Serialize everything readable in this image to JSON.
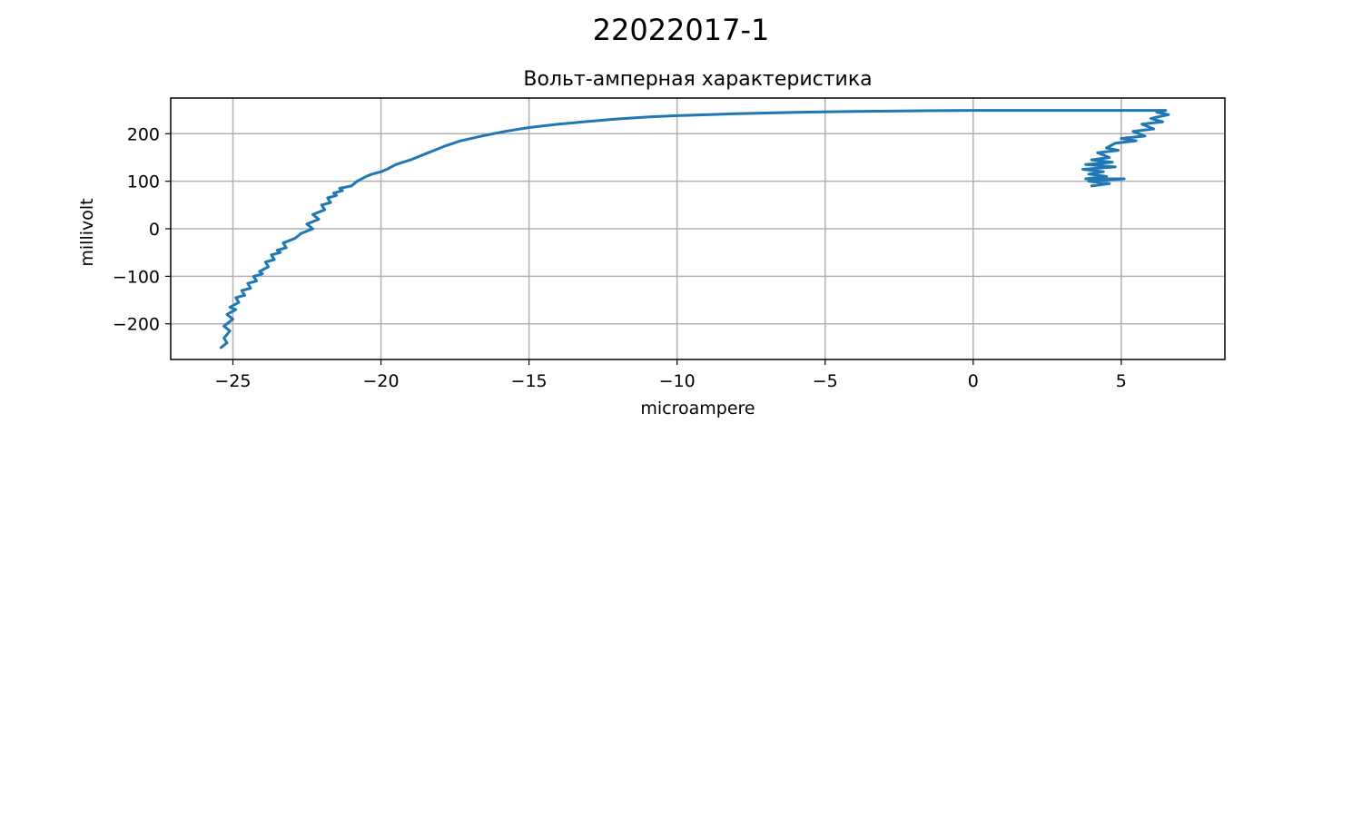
{
  "figure": {
    "suptitle": "22022017-1"
  },
  "chart_data": {
    "type": "line",
    "title": "Вольт-амперная характеристика",
    "xlabel": "microampere",
    "ylabel": "millivolt",
    "xlim": [
      -27.1,
      8.5
    ],
    "ylim": [
      -275,
      275
    ],
    "xticks": [
      -25,
      -20,
      -15,
      -10,
      -5,
      0,
      5
    ],
    "xtick_labels": [
      "−25",
      "−20",
      "−15",
      "−10",
      "−5",
      "0",
      "5"
    ],
    "yticks": [
      -200,
      -100,
      0,
      100,
      200
    ],
    "ytick_labels": [
      "−200",
      "−100",
      "0",
      "100",
      "200"
    ],
    "grid": true,
    "colors": {
      "line": "#1f77b4",
      "grid": "#b0b0b0",
      "axes": "#000000"
    },
    "series": [
      {
        "x": [
          -25.4,
          -25.2,
          -25.3,
          -25.1,
          -25.3,
          -25.0,
          -25.2,
          -24.9,
          -25.1,
          -24.8,
          -24.9,
          -24.6,
          -24.7,
          -24.4,
          -24.5,
          -24.2,
          -24.3,
          -24.0,
          -24.1,
          -23.8,
          -23.9,
          -23.6,
          -23.7,
          -23.4,
          -23.5,
          -23.2,
          -23.3,
          -22.9,
          -22.7,
          -22.3,
          -22.5,
          -22.1,
          -22.3,
          -21.9,
          -22.0,
          -21.7,
          -21.8,
          -21.5,
          -21.6,
          -21.3,
          -21.4,
          -21.0,
          -20.8,
          -20.5,
          -20.3,
          -20.0,
          -19.8,
          -19.5,
          -19.0,
          -18.6,
          -18.2,
          -17.8,
          -17.3,
          -16.6,
          -15.8,
          -15.0,
          -14.0,
          -13.0,
          -12.0,
          -11.0,
          -10.0,
          -8.0,
          -6.0,
          -4.0,
          -2.0,
          0.0,
          2.0,
          4.0,
          6.5,
          6.2,
          6.6,
          6.0,
          6.4,
          5.7,
          6.1,
          5.4,
          5.8,
          5.0,
          5.5,
          4.8,
          4.5,
          4.9,
          4.2,
          4.6,
          4.0,
          4.7,
          3.8,
          4.8,
          3.7,
          4.4,
          3.9,
          4.5,
          3.8,
          5.1,
          3.9,
          4.6,
          4.0
        ],
        "y": [
          -250,
          -240,
          -230,
          -215,
          -205,
          -190,
          -180,
          -170,
          -165,
          -155,
          -145,
          -140,
          -130,
          -125,
          -115,
          -110,
          -100,
          -95,
          -90,
          -80,
          -70,
          -65,
          -55,
          -50,
          -45,
          -40,
          -30,
          -20,
          -10,
          0,
          10,
          20,
          30,
          40,
          50,
          55,
          65,
          70,
          75,
          80,
          85,
          90,
          100,
          110,
          115,
          120,
          125,
          135,
          145,
          155,
          165,
          175,
          185,
          195,
          205,
          213,
          220,
          226,
          231,
          235,
          238,
          242,
          245,
          247,
          248,
          249,
          249,
          249,
          249,
          245,
          240,
          232,
          225,
          220,
          210,
          205,
          195,
          190,
          185,
          180,
          170,
          165,
          160,
          150,
          145,
          140,
          135,
          130,
          125,
          120,
          115,
          110,
          105,
          105,
          100,
          95,
          90
        ]
      }
    ]
  }
}
